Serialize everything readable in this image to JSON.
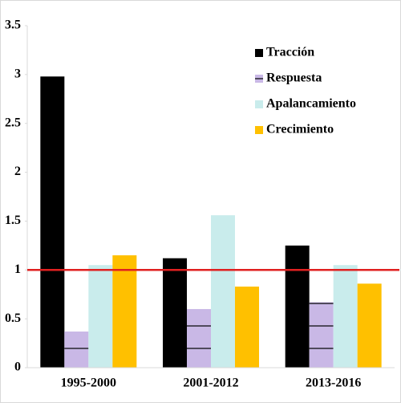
{
  "chart_data": {
    "type": "bar",
    "categories": [
      "1995-2000",
      "2001-2012",
      "2013-2016"
    ],
    "series": [
      {
        "name": "Tracción",
        "color": "#000000",
        "values": [
          2.98,
          1.12,
          1.25
        ]
      },
      {
        "name": "Respuesta",
        "color": "#c9b8e6",
        "values": [
          0.37,
          0.6,
          0.67
        ]
      },
      {
        "name": "Apalancamiento",
        "color": "#c9ecec",
        "values": [
          1.05,
          1.56,
          1.05
        ]
      },
      {
        "name": "Crecimiento",
        "color": "#ffc000",
        "values": [
          1.15,
          0.83,
          0.86
        ]
      }
    ],
    "ylim": [
      0,
      3.5
    ],
    "yticks": [
      0,
      0.5,
      1,
      1.5,
      2,
      2.5,
      3,
      3.5
    ],
    "reference_line": 1,
    "reference_color": "#e02020",
    "legend": "top-right"
  }
}
